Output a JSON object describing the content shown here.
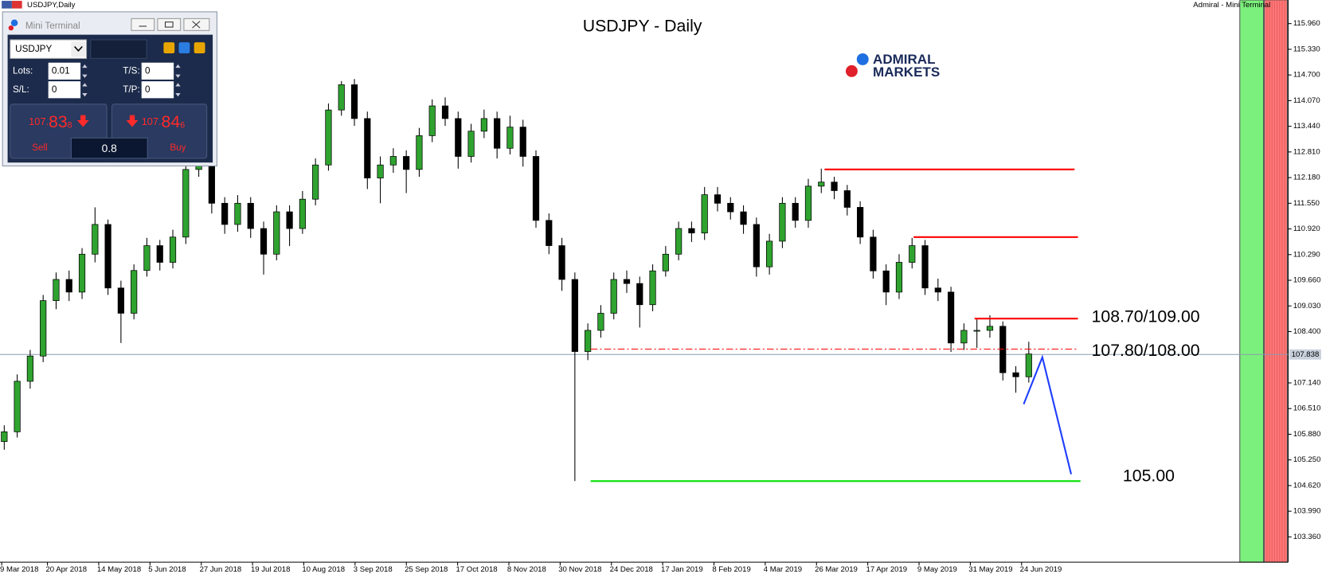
{
  "header": {
    "left": "USDJPY,Daily",
    "right": "Admiral - Mini Terminal"
  },
  "logo": {
    "line1": "ADMIRAL",
    "line2": "MARKETS"
  },
  "mini_terminal": {
    "title": "Mini Terminal",
    "symbol": "USDJPY",
    "lots_label": "Lots:",
    "lots": "0.01",
    "ts_label": "T/S:",
    "ts": "0",
    "sl_label": "S/L:",
    "sl": "0",
    "tp_label": "T/P:",
    "tp": "0",
    "sell": {
      "prefix": "107.",
      "big": "83",
      "sub": "8",
      "label": "Sell"
    },
    "buy": {
      "prefix": "107.",
      "big": "84",
      "sub": "6",
      "label": "Buy"
    },
    "spread": "0.8"
  },
  "chart_data": {
    "type": "candlestick",
    "title": "USDJPY - Daily",
    "up_color": "#2fa32f",
    "down_color": "#000000",
    "ohlc": [
      [
        105.7,
        106.1,
        105.5,
        105.94
      ],
      [
        105.94,
        107.35,
        105.8,
        107.18
      ],
      [
        107.18,
        107.95,
        107.0,
        107.8
      ],
      [
        107.8,
        109.3,
        107.65,
        109.16
      ],
      [
        109.16,
        109.85,
        108.95,
        109.68
      ],
      [
        109.68,
        109.9,
        109.15,
        109.37
      ],
      [
        109.37,
        110.45,
        109.2,
        110.3
      ],
      [
        110.3,
        111.45,
        110.1,
        111.03
      ],
      [
        111.03,
        111.15,
        109.3,
        109.47
      ],
      [
        109.47,
        109.65,
        108.12,
        108.85
      ],
      [
        108.85,
        110.05,
        108.7,
        109.9
      ],
      [
        109.9,
        110.7,
        109.75,
        110.51
      ],
      [
        110.51,
        110.65,
        109.9,
        110.1
      ],
      [
        110.1,
        110.9,
        109.95,
        110.72
      ],
      [
        110.72,
        112.55,
        110.55,
        112.38
      ],
      [
        112.38,
        113.15,
        112.2,
        112.8
      ],
      [
        112.8,
        112.95,
        111.3,
        111.55
      ],
      [
        111.55,
        111.7,
        110.8,
        111.03
      ],
      [
        111.03,
        111.75,
        110.85,
        111.55
      ],
      [
        111.55,
        111.7,
        110.7,
        110.93
      ],
      [
        110.93,
        111.1,
        109.8,
        110.3
      ],
      [
        110.3,
        111.5,
        110.15,
        111.34
      ],
      [
        111.34,
        111.5,
        110.5,
        110.93
      ],
      [
        110.93,
        111.85,
        110.8,
        111.65
      ],
      [
        111.65,
        112.65,
        111.5,
        112.49
      ],
      [
        112.49,
        114.0,
        112.35,
        113.84
      ],
      [
        113.84,
        114.55,
        113.7,
        114.46
      ],
      [
        114.46,
        114.6,
        113.45,
        113.63
      ],
      [
        113.63,
        113.8,
        111.9,
        112.17
      ],
      [
        112.17,
        112.7,
        111.55,
        112.49
      ],
      [
        112.49,
        112.9,
        112.3,
        112.7
      ],
      [
        112.7,
        112.85,
        111.8,
        112.38
      ],
      [
        112.38,
        113.4,
        112.2,
        113.21
      ],
      [
        113.21,
        114.1,
        113.05,
        113.94
      ],
      [
        113.94,
        114.15,
        113.45,
        113.63
      ],
      [
        113.63,
        113.8,
        112.4,
        112.7
      ],
      [
        112.7,
        113.5,
        112.55,
        113.32
      ],
      [
        113.32,
        113.85,
        113.15,
        113.63
      ],
      [
        113.63,
        113.8,
        112.65,
        112.9
      ],
      [
        112.9,
        113.7,
        112.75,
        113.42
      ],
      [
        113.42,
        113.6,
        112.45,
        112.7
      ],
      [
        112.7,
        112.85,
        110.95,
        111.13
      ],
      [
        111.13,
        111.3,
        110.3,
        110.51
      ],
      [
        110.51,
        110.7,
        109.4,
        109.68
      ],
      [
        109.68,
        109.85,
        104.73,
        107.91
      ],
      [
        107.91,
        108.6,
        107.7,
        108.43
      ],
      [
        108.43,
        109.05,
        108.25,
        108.85
      ],
      [
        108.85,
        109.85,
        108.7,
        109.68
      ],
      [
        109.68,
        109.9,
        109.35,
        109.58
      ],
      [
        109.58,
        109.75,
        108.5,
        109.06
      ],
      [
        109.06,
        110.05,
        108.9,
        109.89
      ],
      [
        109.89,
        110.5,
        109.75,
        110.3
      ],
      [
        110.3,
        111.1,
        110.15,
        110.93
      ],
      [
        110.93,
        111.1,
        110.6,
        110.82
      ],
      [
        110.82,
        111.95,
        110.65,
        111.76
      ],
      [
        111.76,
        111.95,
        111.35,
        111.55
      ],
      [
        111.55,
        111.7,
        111.15,
        111.34
      ],
      [
        111.34,
        111.5,
        110.8,
        111.03
      ],
      [
        111.03,
        111.2,
        109.75,
        109.99
      ],
      [
        109.99,
        110.8,
        109.8,
        110.62
      ],
      [
        110.62,
        111.7,
        110.45,
        111.55
      ],
      [
        111.55,
        111.7,
        110.95,
        111.13
      ],
      [
        111.13,
        112.15,
        110.95,
        111.97
      ],
      [
        111.97,
        112.4,
        111.8,
        112.07
      ],
      [
        112.07,
        112.2,
        111.65,
        111.86
      ],
      [
        111.86,
        112.0,
        111.25,
        111.45
      ],
      [
        111.45,
        111.6,
        110.55,
        110.72
      ],
      [
        110.72,
        110.9,
        109.7,
        109.89
      ],
      [
        109.89,
        110.05,
        109.05,
        109.37
      ],
      [
        109.37,
        110.3,
        109.2,
        110.1
      ],
      [
        110.1,
        110.7,
        109.95,
        110.51
      ],
      [
        110.51,
        110.65,
        109.3,
        109.47
      ],
      [
        109.47,
        109.7,
        109.15,
        109.37
      ],
      [
        109.37,
        109.5,
        107.9,
        108.12
      ],
      [
        108.12,
        108.6,
        107.95,
        108.43
      ],
      [
        108.43,
        108.7,
        108.0,
        108.43
      ],
      [
        108.43,
        108.8,
        108.25,
        108.53
      ],
      [
        108.53,
        108.65,
        107.2,
        107.39
      ],
      [
        107.39,
        107.55,
        106.9,
        107.29
      ],
      [
        107.29,
        108.15,
        107.15,
        107.85
      ]
    ],
    "xticks": [
      "9 Mar 2018",
      "20 Apr 2018",
      "14 May 2018",
      "5 Jun 2018",
      "27 Jun 2018",
      "19 Jul 2018",
      "10 Aug 2018",
      "3 Sep 2018",
      "25 Sep 2018",
      "17 Oct 2018",
      "8 Nov 2018",
      "30 Nov 2018",
      "24 Dec 2018",
      "17 Jan 2019",
      "8 Feb 2019",
      "4 Mar 2019",
      "26 Mar 2019",
      "17 Apr 2019",
      "9 May 2019",
      "31 May 2019",
      "24 Jun 2019"
    ],
    "ylim": [
      102.74,
      116.54
    ],
    "yticks": [
      {
        "value": 115.96,
        "label": "115.960"
      },
      {
        "value": 115.33,
        "label": "115.330"
      },
      {
        "value": 114.7,
        "label": "114.700"
      },
      {
        "value": 114.07,
        "label": "114.070"
      },
      {
        "value": 113.44,
        "label": "113.440"
      },
      {
        "value": 112.81,
        "label": "112.810"
      },
      {
        "value": 112.18,
        "label": "112.180"
      },
      {
        "value": 111.55,
        "label": "111.550"
      },
      {
        "value": 110.92,
        "label": "110.920"
      },
      {
        "value": 110.29,
        "label": "110.290"
      },
      {
        "value": 109.66,
        "label": "109.660"
      },
      {
        "value": 109.03,
        "label": "109.030"
      },
      {
        "value": 108.4,
        "label": "108.400"
      },
      {
        "value": 107.14,
        "label": "107.140"
      },
      {
        "value": 106.51,
        "label": "106.510"
      },
      {
        "value": 105.88,
        "label": "105.880"
      },
      {
        "value": 105.25,
        "label": "105.250"
      },
      {
        "value": 104.62,
        "label": "104.620"
      },
      {
        "value": 103.99,
        "label": "103.990"
      },
      {
        "value": 103.36,
        "label": "103.360"
      }
    ],
    "current_price": 107.838,
    "levels": [
      {
        "value": 112.38,
        "color": "#ff0000"
      },
      {
        "value": 110.72,
        "color": "#ff0000"
      },
      {
        "value": 108.72,
        "color": "#ff0000"
      },
      {
        "value": 107.97,
        "color": "#ff0000",
        "dashed": true
      },
      {
        "value": 104.73,
        "color": "#00e000"
      }
    ],
    "projection": {
      "color": "#1f3fff",
      "values": [
        106.62,
        107.77,
        104.9
      ]
    },
    "annotations": [
      "108.70/109.00",
      "107.80/108.00",
      "105.00"
    ]
  }
}
